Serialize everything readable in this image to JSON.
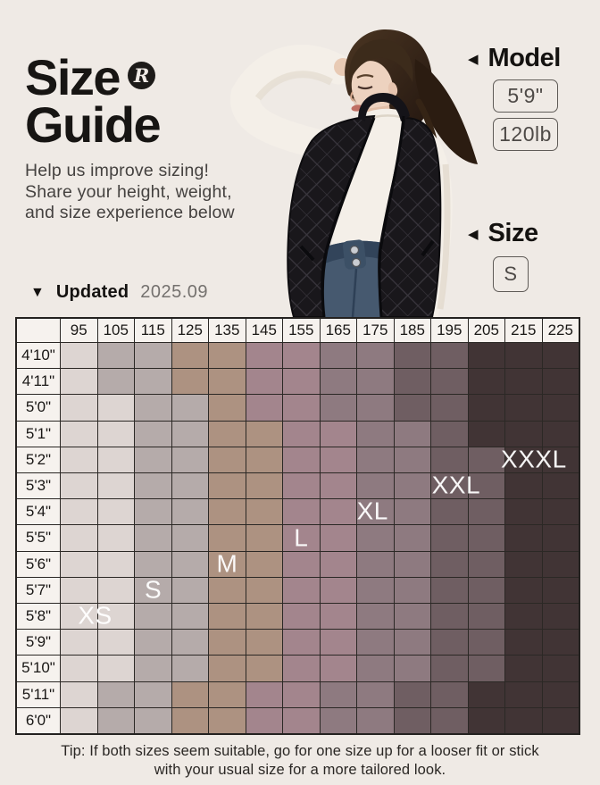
{
  "header": {
    "title_line1": "Size",
    "title_line2": "Guide",
    "logo_letter": "R",
    "subtitle_lines": [
      "Help us improve sizing!",
      "Share your height, weight,",
      "and size experience below"
    ]
  },
  "model_info": {
    "arrow": "◀",
    "label": "Model",
    "height": "5'9\"",
    "weight": "120lb"
  },
  "size_info": {
    "arrow": "◀",
    "label": "Size",
    "value": "S"
  },
  "updated": {
    "arrow": "▼",
    "label": "Updated",
    "date": "2025.09"
  },
  "chart_data": {
    "type": "heatmap",
    "columns": [
      "95",
      "105",
      "115",
      "125",
      "135",
      "145",
      "155",
      "165",
      "175",
      "185",
      "195",
      "205",
      "215",
      "225"
    ],
    "rows": [
      "4'10\"",
      "4'11\"",
      "5'0\"",
      "5'1\"",
      "5'2\"",
      "5'3\"",
      "5'4\"",
      "5'5\"",
      "5'6\"",
      "5'7\"",
      "5'8\"",
      "5'9\"",
      "5'10\"",
      "5'11\"",
      "6'0\""
    ],
    "bands": [
      {
        "size": "XS",
        "color": "#ddd5d2"
      },
      {
        "size": "S",
        "color": "#b5abaa"
      },
      {
        "size": "M",
        "color": "#ad9281"
      },
      {
        "size": "L",
        "color": "#a3858d"
      },
      {
        "size": "XL",
        "color": "#8e7a80"
      },
      {
        "size": "XXL",
        "color": "#6f5e62"
      },
      {
        "size": "XXXL",
        "color": "#413435"
      }
    ],
    "cells": [
      [
        0,
        1,
        1,
        2,
        2,
        3,
        3,
        4,
        4,
        5,
        5,
        6,
        6,
        6
      ],
      [
        0,
        1,
        1,
        2,
        2,
        3,
        3,
        4,
        4,
        5,
        5,
        6,
        6,
        6
      ],
      [
        0,
        0,
        1,
        1,
        2,
        3,
        3,
        4,
        4,
        5,
        5,
        6,
        6,
        6
      ],
      [
        0,
        0,
        1,
        1,
        2,
        2,
        3,
        3,
        4,
        4,
        5,
        6,
        6,
        6
      ],
      [
        0,
        0,
        1,
        1,
        2,
        2,
        3,
        3,
        4,
        4,
        5,
        5,
        6,
        6
      ],
      [
        0,
        0,
        1,
        1,
        2,
        2,
        3,
        3,
        4,
        4,
        5,
        5,
        6,
        6
      ],
      [
        0,
        0,
        1,
        1,
        2,
        2,
        3,
        3,
        4,
        4,
        5,
        5,
        6,
        6
      ],
      [
        0,
        0,
        1,
        1,
        2,
        2,
        3,
        3,
        4,
        4,
        5,
        5,
        6,
        6
      ],
      [
        0,
        0,
        1,
        1,
        2,
        2,
        3,
        3,
        4,
        4,
        5,
        5,
        6,
        6
      ],
      [
        0,
        0,
        1,
        1,
        2,
        2,
        3,
        3,
        4,
        4,
        5,
        5,
        6,
        6
      ],
      [
        0,
        0,
        1,
        1,
        2,
        2,
        3,
        3,
        4,
        4,
        5,
        5,
        6,
        6
      ],
      [
        0,
        0,
        1,
        1,
        2,
        2,
        3,
        3,
        4,
        4,
        5,
        5,
        6,
        6
      ],
      [
        0,
        0,
        1,
        1,
        2,
        2,
        3,
        3,
        4,
        4,
        5,
        5,
        6,
        6
      ],
      [
        0,
        1,
        1,
        2,
        2,
        3,
        3,
        4,
        4,
        5,
        5,
        6,
        6,
        6
      ],
      [
        0,
        1,
        1,
        2,
        2,
        3,
        3,
        4,
        4,
        5,
        5,
        6,
        6,
        6
      ]
    ],
    "size_labels": [
      {
        "text": "XS",
        "row": 10,
        "col": 0.93
      },
      {
        "text": "S",
        "row": 9,
        "col": 2.5
      },
      {
        "text": "M",
        "row": 8,
        "col": 4.5
      },
      {
        "text": "L",
        "row": 7,
        "col": 6.5
      },
      {
        "text": "XL",
        "row": 6,
        "col": 8.43
      },
      {
        "text": "XXL",
        "row": 5,
        "col": 10.69
      },
      {
        "text": "XXXL",
        "row": 4,
        "col": 12.79
      }
    ],
    "legend_position": "diagonal-in-cells",
    "grid": true
  },
  "tip": {
    "lines": [
      "Tip: If both sizes seem suitable, go for one size up for a looser fit or stick",
      "with your usual size for a more tailored look."
    ]
  }
}
